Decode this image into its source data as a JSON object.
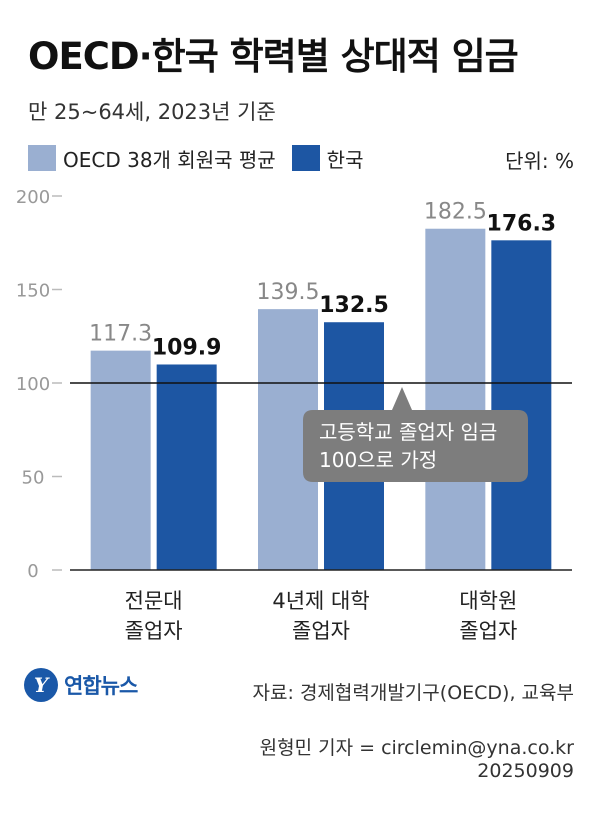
{
  "title": "OECD·한국 학력별 상대적 임금",
  "subtitle": "만 25~64세, 2023년 기준",
  "unit": "단위: %",
  "colors": {
    "oecd": "#9aafd1",
    "korea": "#1d56a3",
    "baseline": "#111111",
    "callout": "#7d7d7d"
  },
  "chart_data": {
    "type": "bar",
    "categories": [
      [
        "전문대",
        "졸업자"
      ],
      [
        "4년제 대학",
        "졸업자"
      ],
      [
        "대학원",
        "졸업자"
      ]
    ],
    "series": [
      {
        "name": "OECD 38개 회원국 평균",
        "values": [
          117.3,
          139.5,
          182.5
        ]
      },
      {
        "name": "한국",
        "values": [
          109.9,
          132.5,
          176.3
        ]
      }
    ],
    "ylim": [
      0,
      200
    ],
    "yticks": [
      0,
      50,
      100,
      150,
      200
    ],
    "reference_line": 100,
    "annotation": [
      "고등학교 졸업자 임금",
      "100으로 가정"
    ]
  },
  "footer": {
    "logo_mark": "Y",
    "logo_text": "연합뉴스",
    "source": "자료: 경제협력개발기구(OECD), 교육부",
    "credit": "원형민 기자 = circlemin@yna.co.kr",
    "date": "20250909"
  }
}
